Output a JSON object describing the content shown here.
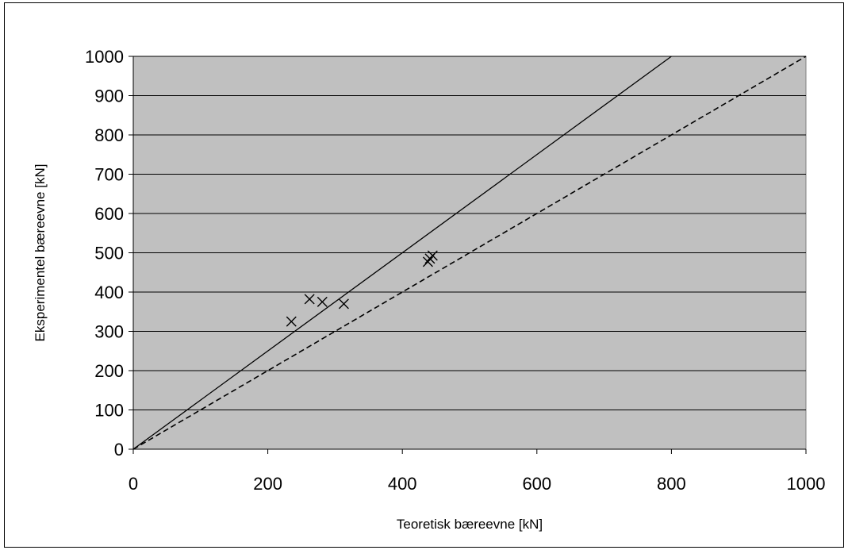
{
  "chart_data": {
    "type": "scatter",
    "title": "",
    "xlabel": "Teoretisk bæreevne [kN]",
    "ylabel": "Eksperimentel bæreevne [kN]",
    "xlim": [
      0,
      1000
    ],
    "ylim": [
      0,
      1000
    ],
    "x_ticks": [
      "0",
      "200",
      "400",
      "600",
      "800",
      "1000"
    ],
    "y_ticks": [
      "0",
      "100",
      "200",
      "300",
      "400",
      "500",
      "600",
      "700",
      "800",
      "900",
      "1000"
    ],
    "grid": "horizontal",
    "legend": "none",
    "plot_background": "#c0c0c0",
    "series": [
      {
        "marker": "x",
        "color": "#000000",
        "points": [
          {
            "x": 235,
            "y": 325
          },
          {
            "x": 262,
            "y": 382
          },
          {
            "x": 281,
            "y": 375
          },
          {
            "x": 313,
            "y": 370
          },
          {
            "x": 438,
            "y": 477
          },
          {
            "x": 441,
            "y": 485
          },
          {
            "x": 445,
            "y": 493
          }
        ]
      }
    ],
    "reference_lines": [
      {
        "style": "solid",
        "color": "#000000",
        "points": [
          {
            "x": 0,
            "y": 0
          },
          {
            "x": 800,
            "y": 1000
          }
        ]
      },
      {
        "style": "dashed",
        "color": "#000000",
        "points": [
          {
            "x": 0,
            "y": 0
          },
          {
            "x": 1000,
            "y": 1000
          }
        ]
      }
    ]
  }
}
